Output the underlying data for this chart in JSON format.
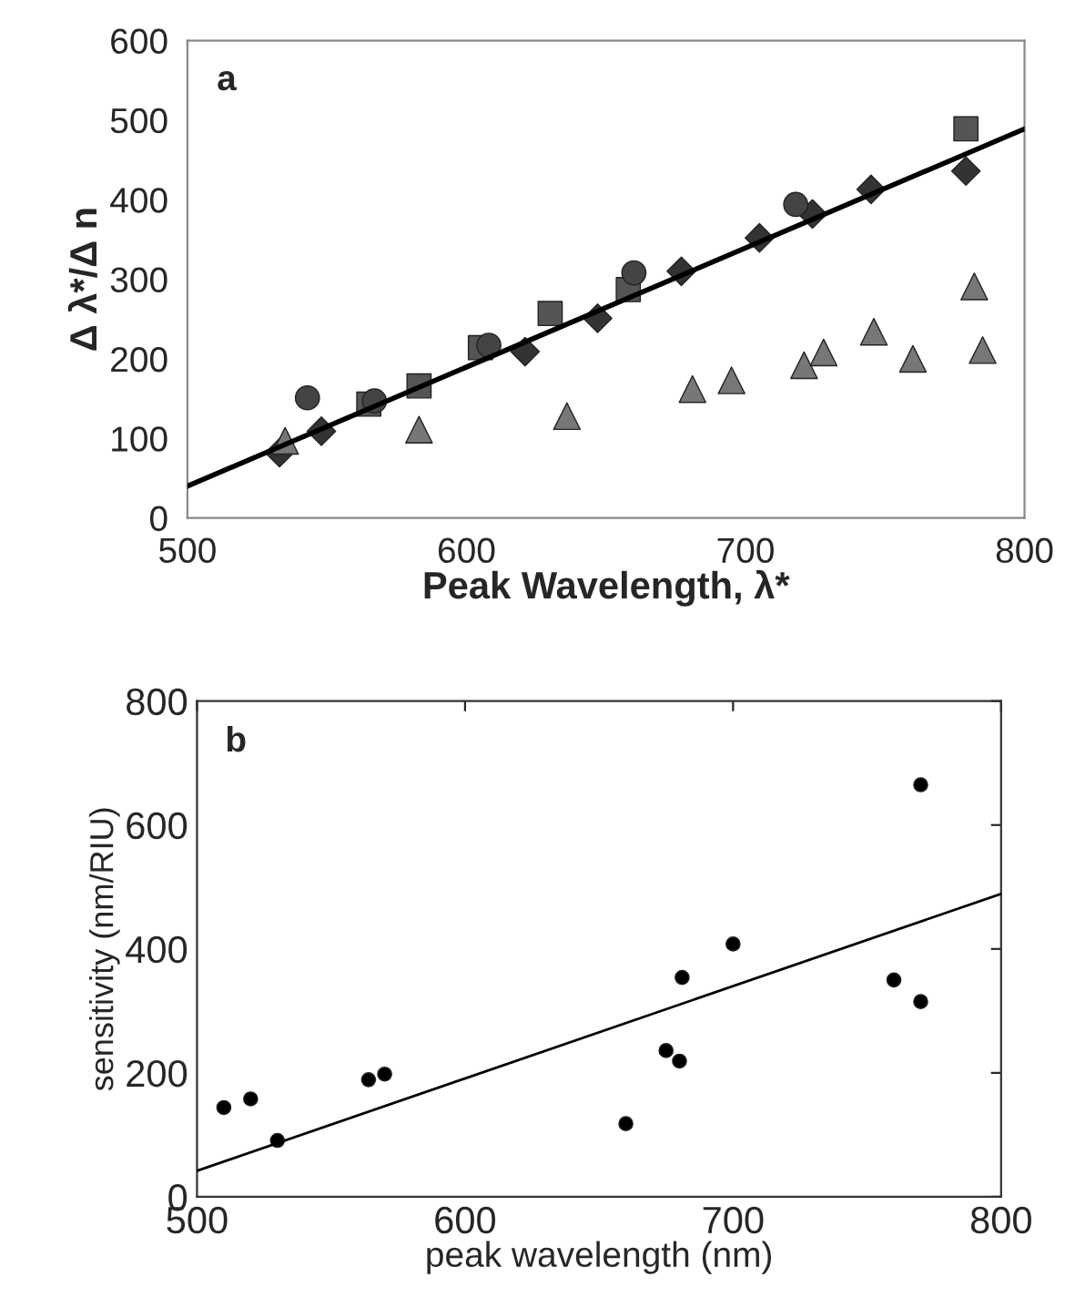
{
  "chart_data": [
    {
      "type": "scatter",
      "xlabel": "Peak Wavelength, λ*",
      "ylabel": "Δ λ*/Δ n",
      "annotations": [
        "a"
      ],
      "xlim": [
        500,
        800
      ],
      "ylim": [
        0,
        600
      ],
      "xticks": [
        500,
        600,
        700,
        800
      ],
      "yticks": [
        0,
        100,
        200,
        300,
        400,
        500,
        600
      ],
      "grid": false,
      "legend": false,
      "series": [
        {
          "type": "line",
          "color": "#000000",
          "x": [
            500,
            800
          ],
          "values": [
            40,
            489
          ],
          "marker": "none",
          "line_style": "solid"
        },
        {
          "color": "#333333",
          "marker": "diamond",
          "x": [
            533,
            548,
            621,
            647,
            677,
            705,
            724,
            745,
            779
          ],
          "values": [
            82,
            109,
            209,
            251,
            310,
            352,
            382,
            413,
            436
          ]
        },
        {
          "color": "#555555",
          "marker": "square",
          "x": [
            565,
            583,
            605,
            630,
            658,
            779
          ],
          "values": [
            143,
            166,
            214,
            257,
            287,
            489
          ]
        },
        {
          "color": "#444444",
          "marker": "circle",
          "x": [
            543,
            567,
            608,
            660,
            718
          ],
          "values": [
            151,
            147,
            217,
            308,
            394
          ]
        },
        {
          "color": "#777777",
          "marker": "triangle",
          "x": [
            535,
            583,
            636,
            681,
            695,
            721,
            728,
            746,
            760,
            782,
            785
          ],
          "values": [
            97,
            111,
            128,
            162,
            173,
            192,
            208,
            234,
            200,
            291,
            211
          ]
        }
      ]
    },
    {
      "type": "scatter",
      "xlabel": "peak wavelength (nm)",
      "ylabel": "sensitivity (nm/RIU)",
      "annotations": [
        "b"
      ],
      "xlim": [
        500,
        800
      ],
      "ylim": [
        0,
        800
      ],
      "xticks": [
        500,
        600,
        700,
        800
      ],
      "yticks": [
        0,
        200,
        400,
        600,
        800
      ],
      "grid": false,
      "legend": false,
      "series": [
        {
          "type": "line",
          "color": "#000000",
          "x": [
            500,
            800
          ],
          "values": [
            42,
            489
          ],
          "marker": "none",
          "line_style": "solid"
        },
        {
          "color": "#000000",
          "marker": "circle",
          "x": [
            510,
            520,
            530,
            564,
            570,
            660,
            675,
            680,
            681,
            700,
            760,
            770,
            770
          ],
          "values": [
            144,
            158,
            91,
            189,
            198,
            118,
            236,
            219,
            354,
            408,
            350,
            315,
            665
          ]
        }
      ]
    }
  ]
}
